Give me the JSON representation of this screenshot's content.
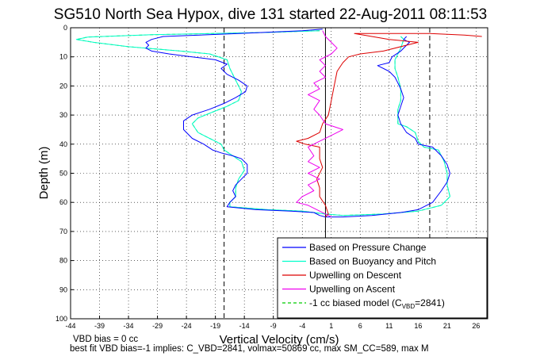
{
  "chart_data": {
    "type": "line",
    "title": "SG510 North Sea Hypox, dive 131 started 22-Aug-2011 08:11:53",
    "xlabel": "Vertical Velocity (cm/s)",
    "ylabel": "Depth (m)",
    "xlim": [
      -44,
      28
    ],
    "ylim": [
      0,
      100
    ],
    "y_reversed": true,
    "grid": true,
    "x_ticks": [
      -44,
      -39,
      -34,
      -29,
      -24,
      -19,
      -14,
      -9,
      -4,
      1,
      6,
      11,
      16,
      21,
      26
    ],
    "y_ticks": [
      0,
      10,
      20,
      30,
      40,
      50,
      60,
      70,
      80,
      90,
      100
    ],
    "legend_position": "bottom-right",
    "colors": {
      "pressure": "#0000ff",
      "buoyancy": "#00ffcc",
      "upwell_descent": "#dd0000",
      "upwell_ascent": "#ee00ee",
      "model": "#00cc00",
      "reference": "#000000"
    },
    "series": [
      {
        "name": "Based on Pressure Change",
        "color_key": "pressure",
        "points": [
          [
            -0.5,
            0.5
          ],
          [
            -4,
            1
          ],
          [
            -15,
            2
          ],
          [
            -28,
            3
          ],
          [
            -30,
            4
          ],
          [
            -31,
            5
          ],
          [
            -30.5,
            6
          ],
          [
            -31,
            7
          ],
          [
            -30,
            8
          ],
          [
            -27,
            9
          ],
          [
            -23,
            10
          ],
          [
            -19,
            11
          ],
          [
            -17,
            12.5
          ],
          [
            -18,
            14
          ],
          [
            -17,
            16
          ],
          [
            -15,
            18
          ],
          [
            -13.5,
            20
          ],
          [
            -13.8,
            22
          ],
          [
            -15.5,
            24
          ],
          [
            -17.5,
            26
          ],
          [
            -20,
            28
          ],
          [
            -23,
            30
          ],
          [
            -24.5,
            32
          ],
          [
            -24.5,
            35
          ],
          [
            -23,
            38
          ],
          [
            -21,
            40
          ],
          [
            -19.5,
            42
          ],
          [
            -18,
            43
          ],
          [
            -16,
            44
          ],
          [
            -14.5,
            45
          ],
          [
            -13.5,
            47
          ],
          [
            -13.5,
            50
          ],
          [
            -14.5,
            52
          ],
          [
            -15.5,
            54
          ],
          [
            -16,
            56
          ],
          [
            -15.5,
            58
          ],
          [
            -16.5,
            60
          ],
          [
            -17,
            61.5
          ],
          [
            -12,
            62.5
          ],
          [
            -6,
            63
          ],
          [
            -2,
            63.5
          ],
          [
            -1,
            64.5
          ],
          [
            0,
            65
          ],
          [
            3,
            65
          ],
          [
            8,
            64.5
          ],
          [
            13,
            63.5
          ],
          [
            16,
            62.5
          ],
          [
            18.5,
            60
          ],
          [
            20,
            56
          ],
          [
            21,
            53
          ],
          [
            21.5,
            50
          ],
          [
            21,
            47
          ],
          [
            20,
            44
          ],
          [
            18.5,
            41
          ],
          [
            16,
            40
          ],
          [
            15.5,
            38
          ],
          [
            14,
            36
          ],
          [
            13,
            33
          ],
          [
            12.5,
            30
          ],
          [
            13,
            27
          ],
          [
            13.5,
            24
          ],
          [
            13,
            21
          ],
          [
            12.5,
            19
          ],
          [
            12,
            17
          ],
          [
            11,
            15
          ],
          [
            9,
            13
          ],
          [
            11,
            12
          ],
          [
            11.5,
            10
          ],
          [
            13,
            8
          ],
          [
            14,
            6
          ],
          [
            14.5,
            5
          ],
          [
            13.5,
            4
          ],
          [
            14,
            3
          ]
        ]
      },
      {
        "name": "Based on Buoyancy and Pitch",
        "color_key": "buoyancy",
        "points": [
          [
            -1,
            1
          ],
          [
            -10,
            1.6
          ],
          [
            -30,
            2.4
          ],
          [
            -41,
            3.2
          ],
          [
            -43,
            4
          ],
          [
            -40,
            5
          ],
          [
            -34,
            6.5
          ],
          [
            -25,
            8
          ],
          [
            -20,
            9
          ],
          [
            -17,
            11
          ],
          [
            -16.5,
            14
          ],
          [
            -15.5,
            18
          ],
          [
            -14.5,
            22
          ],
          [
            -15,
            25
          ],
          [
            -17,
            27
          ],
          [
            -19.5,
            29
          ],
          [
            -22,
            31
          ],
          [
            -23,
            33
          ],
          [
            -22,
            36
          ],
          [
            -20,
            38
          ],
          [
            -18,
            40
          ],
          [
            -17.5,
            42
          ],
          [
            -16,
            44
          ],
          [
            -14.5,
            46
          ],
          [
            -14,
            49
          ],
          [
            -15,
            52
          ],
          [
            -15.5,
            55
          ],
          [
            -15.5,
            58
          ],
          [
            -16.5,
            60
          ],
          [
            -16.5,
            61.5
          ],
          [
            -10,
            62.5
          ],
          [
            -4,
            63
          ],
          [
            0,
            64
          ],
          [
            3,
            64.5
          ],
          [
            10,
            64
          ],
          [
            16,
            63
          ],
          [
            20,
            61
          ],
          [
            21.5,
            58
          ],
          [
            21,
            54
          ],
          [
            21,
            50
          ],
          [
            20.5,
            46
          ],
          [
            19.5,
            42
          ],
          [
            17,
            41
          ],
          [
            16,
            39
          ],
          [
            15.5,
            36
          ],
          [
            14,
            34
          ],
          [
            12.5,
            33
          ],
          [
            12.5,
            28
          ],
          [
            13,
            25
          ],
          [
            13,
            21
          ],
          [
            12.5,
            17
          ],
          [
            12,
            14
          ],
          [
            12,
            11
          ],
          [
            12.5,
            9
          ],
          [
            13,
            7
          ],
          [
            13.5,
            4
          ],
          [
            13,
            3
          ]
        ]
      },
      {
        "name": "Upwelling on Descent",
        "color_key": "upwell_descent",
        "points": [
          [
            27,
            3
          ],
          [
            24,
            2.5
          ],
          [
            18,
            2
          ],
          [
            10,
            2
          ],
          [
            8,
            2
          ],
          [
            5,
            2
          ],
          [
            11,
            4
          ],
          [
            16,
            5
          ],
          [
            14,
            6
          ],
          [
            10,
            8
          ],
          [
            6,
            9
          ],
          [
            4,
            10
          ],
          [
            3,
            12
          ],
          [
            2,
            15
          ],
          [
            1.5,
            20
          ],
          [
            1,
            25
          ],
          [
            0.5,
            30
          ],
          [
            -0.5,
            33
          ],
          [
            -1,
            36
          ],
          [
            -3,
            38
          ],
          [
            -5,
            39
          ],
          [
            -3.5,
            40
          ],
          [
            -1,
            41
          ],
          [
            -1,
            45
          ],
          [
            -0.5,
            48
          ],
          [
            -1.5,
            52
          ],
          [
            -1,
            55
          ],
          [
            -1,
            58
          ],
          [
            0,
            61
          ],
          [
            0.5,
            64
          ],
          [
            0,
            65
          ]
        ]
      },
      {
        "name": "Upwelling on Ascent",
        "color_key": "upwell_ascent",
        "points": [
          [
            1,
            65
          ],
          [
            -1,
            63
          ],
          [
            -3,
            61
          ],
          [
            -5,
            60
          ],
          [
            -4,
            58
          ],
          [
            -2,
            56
          ],
          [
            -3,
            54
          ],
          [
            -1,
            52
          ],
          [
            -3,
            50
          ],
          [
            -1,
            48
          ],
          [
            -3,
            46
          ],
          [
            -2,
            44
          ],
          [
            -3,
            41
          ],
          [
            -1,
            39
          ],
          [
            1,
            37
          ],
          [
            3,
            35
          ],
          [
            0,
            33
          ],
          [
            -1,
            30
          ],
          [
            -2,
            28
          ],
          [
            -1,
            25
          ],
          [
            -3,
            23
          ],
          [
            -1,
            21
          ],
          [
            -2,
            19
          ],
          [
            0,
            17
          ],
          [
            -1,
            15
          ],
          [
            0,
            13
          ],
          [
            -1,
            11
          ],
          [
            1,
            9
          ],
          [
            2,
            7
          ],
          [
            1,
            5
          ],
          [
            0,
            3
          ],
          [
            -0.5,
            1
          ]
        ]
      },
      {
        "name": "-1 cc biased model (C_VBD=2841)",
        "color_key": "model",
        "dashed": true,
        "points": [
          [
            -1,
            1
          ],
          [
            -10,
            1.6
          ],
          [
            -30,
            2.4
          ],
          [
            -41,
            3.2
          ],
          [
            -43,
            4
          ],
          [
            -40,
            5
          ],
          [
            -34,
            6.5
          ],
          [
            -25,
            8
          ],
          [
            -20,
            9
          ],
          [
            -17,
            11
          ],
          [
            -16.5,
            14
          ],
          [
            -15.5,
            18
          ],
          [
            -14.5,
            22
          ],
          [
            -15,
            25
          ],
          [
            -17,
            27
          ],
          [
            -19.5,
            29
          ],
          [
            -22,
            31
          ],
          [
            -23,
            33
          ],
          [
            -22,
            36
          ],
          [
            -20,
            38
          ],
          [
            -18,
            40
          ],
          [
            -17.5,
            42
          ],
          [
            -16,
            44
          ],
          [
            -14.5,
            46
          ],
          [
            -14,
            49
          ],
          [
            -15,
            52
          ],
          [
            -15.5,
            55
          ],
          [
            -15.5,
            58
          ],
          [
            -16.5,
            60
          ],
          [
            -16.5,
            61.5
          ],
          [
            -10,
            62.5
          ],
          [
            -4,
            63
          ],
          [
            0,
            64
          ],
          [
            3,
            64.5
          ],
          [
            10,
            64
          ],
          [
            16,
            63
          ],
          [
            20,
            61
          ],
          [
            21.5,
            58
          ],
          [
            21,
            54
          ],
          [
            21,
            50
          ],
          [
            20.5,
            46
          ],
          [
            19.5,
            42
          ],
          [
            17,
            41
          ],
          [
            16,
            39
          ],
          [
            15.5,
            36
          ],
          [
            14,
            34
          ],
          [
            12.5,
            33
          ],
          [
            12.5,
            28
          ],
          [
            13,
            25
          ],
          [
            13,
            21
          ],
          [
            12.5,
            17
          ],
          [
            12,
            14
          ],
          [
            12,
            11
          ],
          [
            12.5,
            9
          ],
          [
            13,
            7
          ],
          [
            13.5,
            4
          ],
          [
            13,
            3
          ]
        ]
      }
    ],
    "reference_lines": [
      {
        "x": -17.5,
        "style": "dashed"
      },
      {
        "x": 18,
        "style": "dashed"
      },
      {
        "x": 0,
        "style": "solid"
      }
    ],
    "legend": [
      {
        "label": "Based on Pressure Change",
        "color_key": "pressure",
        "dashed": false
      },
      {
        "label": "Based on Buoyancy and Pitch",
        "color_key": "buoyancy",
        "dashed": false
      },
      {
        "label": "Upwelling on Descent",
        "color_key": "upwell_descent",
        "dashed": false
      },
      {
        "label": "Upwelling on Ascent",
        "color_key": "upwell_ascent",
        "dashed": false
      },
      {
        "label": "-1 cc biased model (C",
        "sub": "VBD",
        "label_after": "=2841)",
        "color_key": "model",
        "dashed": true
      }
    ]
  },
  "footnotes": {
    "line1": "VBD bias = 0 cc",
    "line2": "best fit VBD bias=-1 implies: C_VBD=2841, volmax=50869 cc, max SM_CC=589, max M"
  }
}
